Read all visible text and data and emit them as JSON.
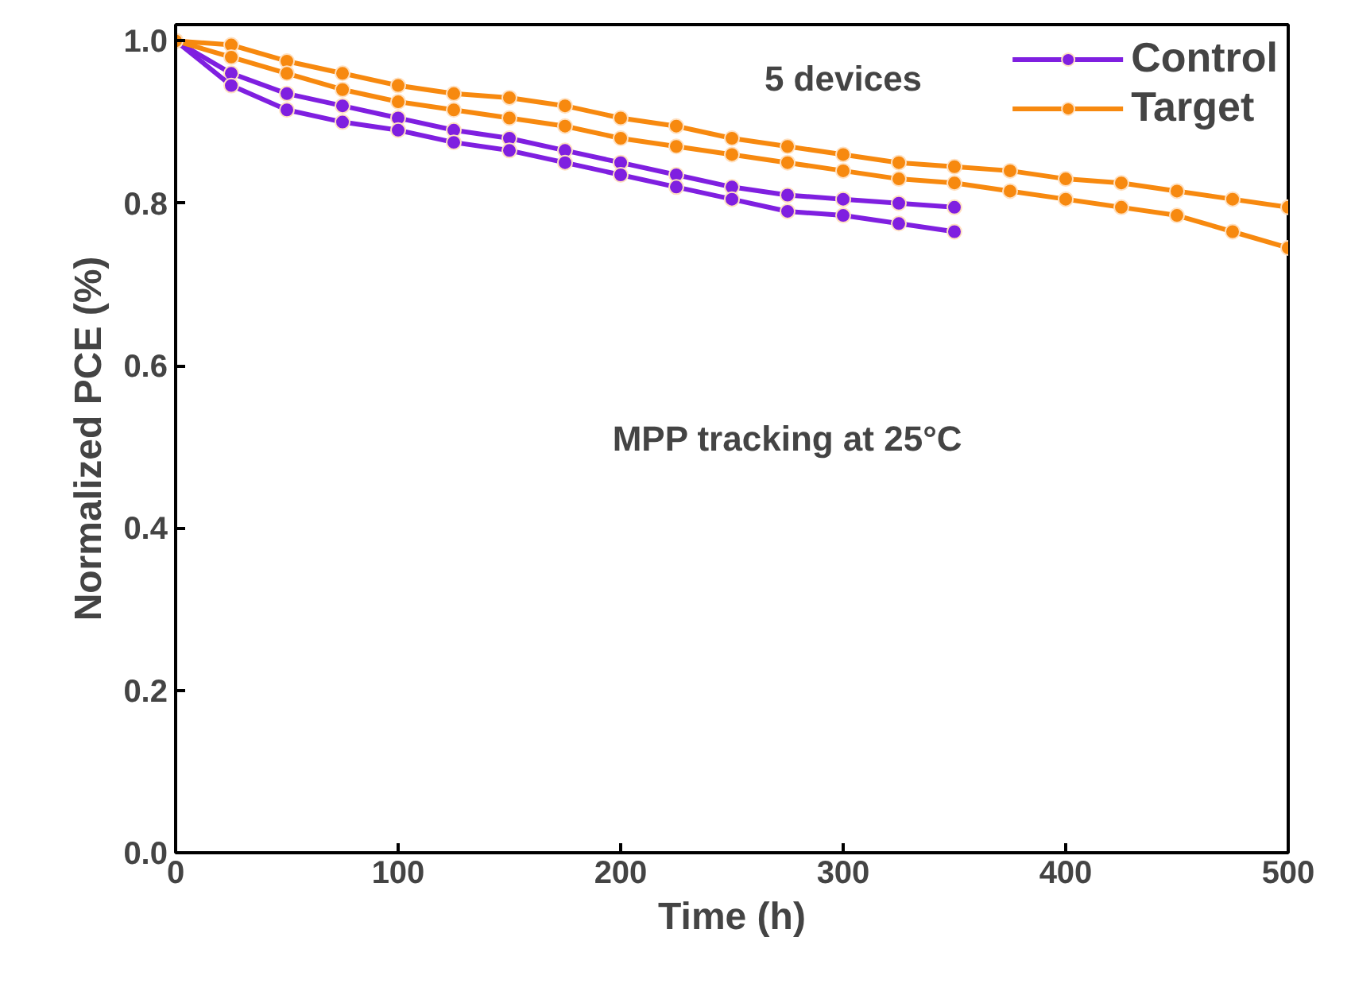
{
  "chart_data": {
    "type": "line",
    "xlabel": "Time (h)",
    "ylabel": "Normalized PCE (%)",
    "xlim": [
      0,
      500
    ],
    "ylim": [
      0,
      1.02
    ],
    "xticks": [
      0,
      100,
      200,
      300,
      400,
      500
    ],
    "yticks": [
      {
        "value": 0,
        "label": "0.0"
      },
      {
        "value": 0.2,
        "label": "0.2"
      },
      {
        "value": 0.4,
        "label": "0.4"
      },
      {
        "value": 0.6,
        "label": "0.6"
      },
      {
        "value": 0.8,
        "label": "0.8"
      },
      {
        "value": 1,
        "label": "1.0"
      }
    ],
    "grid": false,
    "legend": "top right",
    "marker": "circle",
    "line_style": "solid",
    "annotations": [
      "5 devices",
      "MPP tracking at 25°C"
    ],
    "series": [
      {
        "name": "Control",
        "color": "#7f1fe0",
        "x": [
          0,
          25,
          50,
          75,
          100,
          125,
          150,
          175,
          200,
          225,
          250,
          275,
          300,
          325,
          350
        ],
        "values": [
          1.0,
          0.96,
          0.935,
          0.92,
          0.905,
          0.89,
          0.88,
          0.865,
          0.85,
          0.835,
          0.82,
          0.81,
          0.805,
          0.8,
          0.795
        ]
      },
      {
        "color": "#7f1fe0",
        "x": [
          0,
          25,
          50,
          75,
          100,
          125,
          150,
          175,
          200,
          225,
          250,
          275,
          300,
          325,
          350
        ],
        "values": [
          1.0,
          0.945,
          0.915,
          0.9,
          0.89,
          0.875,
          0.865,
          0.85,
          0.835,
          0.82,
          0.805,
          0.79,
          0.785,
          0.775,
          0.765
        ]
      },
      {
        "name": "Target",
        "color": "#f7890f",
        "x": [
          0,
          25,
          50,
          75,
          100,
          125,
          150,
          175,
          200,
          225,
          250,
          275,
          300,
          325,
          350,
          375,
          400,
          425,
          450,
          475,
          500
        ],
        "values": [
          1.0,
          0.995,
          0.975,
          0.96,
          0.945,
          0.935,
          0.93,
          0.92,
          0.905,
          0.895,
          0.88,
          0.87,
          0.86,
          0.85,
          0.845,
          0.84,
          0.83,
          0.825,
          0.815,
          0.805,
          0.795
        ]
      },
      {
        "color": "#f7890f",
        "x": [
          0,
          25,
          50,
          75,
          100,
          125,
          150,
          175,
          200,
          225,
          250,
          275,
          300,
          325,
          350,
          375,
          400,
          425,
          450,
          475,
          500
        ],
        "values": [
          1.0,
          0.98,
          0.96,
          0.94,
          0.925,
          0.915,
          0.905,
          0.895,
          0.88,
          0.87,
          0.86,
          0.85,
          0.84,
          0.83,
          0.825,
          0.815,
          0.805,
          0.795,
          0.785,
          0.765,
          0.745
        ]
      }
    ]
  }
}
